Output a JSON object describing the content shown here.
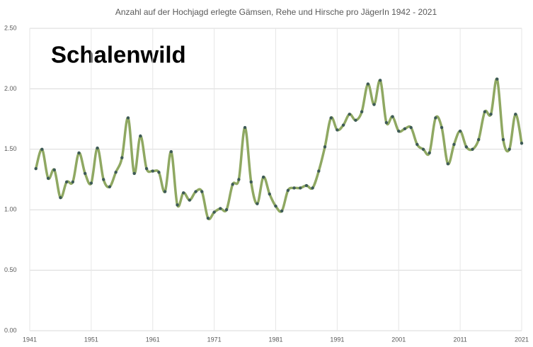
{
  "chart_data": {
    "type": "line",
    "title": "Anzahl auf der Hochjagd erlegte Gämsen, Rehe und Hirsche pro JägerIn 1942 - 2021",
    "annotation": "Schalenwild",
    "x": [
      1942,
      1943,
      1944,
      1945,
      1946,
      1947,
      1948,
      1949,
      1950,
      1951,
      1952,
      1953,
      1954,
      1955,
      1956,
      1957,
      1958,
      1959,
      1960,
      1961,
      1962,
      1963,
      1964,
      1965,
      1966,
      1967,
      1968,
      1969,
      1970,
      1971,
      1972,
      1973,
      1974,
      1975,
      1976,
      1977,
      1978,
      1979,
      1980,
      1981,
      1982,
      1983,
      1984,
      1985,
      1986,
      1987,
      1988,
      1989,
      1990,
      1991,
      1992,
      1993,
      1994,
      1995,
      1996,
      1997,
      1998,
      1999,
      2000,
      2001,
      2002,
      2003,
      2004,
      2005,
      2006,
      2007,
      2008,
      2009,
      2010,
      2011,
      2012,
      2013,
      2014,
      2015,
      2016,
      2017,
      2018,
      2019,
      2020,
      2021
    ],
    "series": [
      {
        "color": "#8fa862",
        "marker_color": "#3d5a56",
        "values": [
          1.34,
          1.5,
          1.26,
          1.33,
          1.1,
          1.23,
          1.23,
          1.47,
          1.3,
          1.22,
          1.51,
          1.25,
          1.19,
          1.31,
          1.43,
          1.76,
          1.3,
          1.61,
          1.34,
          1.32,
          1.31,
          1.15,
          1.48,
          1.04,
          1.14,
          1.08,
          1.15,
          1.15,
          0.93,
          0.98,
          1.01,
          1.0,
          1.21,
          1.25,
          1.68,
          1.23,
          1.05,
          1.27,
          1.13,
          1.03,
          0.99,
          1.16,
          1.18,
          1.18,
          1.2,
          1.18,
          1.32,
          1.52,
          1.76,
          1.66,
          1.7,
          1.79,
          1.74,
          1.81,
          2.04,
          1.87,
          2.07,
          1.72,
          1.77,
          1.65,
          1.67,
          1.68,
          1.54,
          1.5,
          1.47,
          1.76,
          1.68,
          1.38,
          1.54,
          1.65,
          1.52,
          1.5,
          1.58,
          1.81,
          1.79,
          2.08,
          1.58,
          1.5,
          1.79,
          1.55
        ]
      }
    ],
    "xlim": [
      1941,
      2021
    ],
    "xticks": [
      1941,
      1951,
      1961,
      1971,
      1981,
      1991,
      2001,
      2011,
      2021
    ],
    "ylim": [
      0,
      2.5
    ],
    "yticks": [
      {
        "value": 0,
        "label": "0.00"
      },
      {
        "value": 0.5,
        "label": "0.50"
      },
      {
        "value": 1,
        "label": "1.00"
      },
      {
        "value": 1.5,
        "label": "1.50"
      },
      {
        "value": 2,
        "label": "2.00"
      },
      {
        "value": 2.5,
        "label": "2.50"
      }
    ],
    "grid": true
  }
}
